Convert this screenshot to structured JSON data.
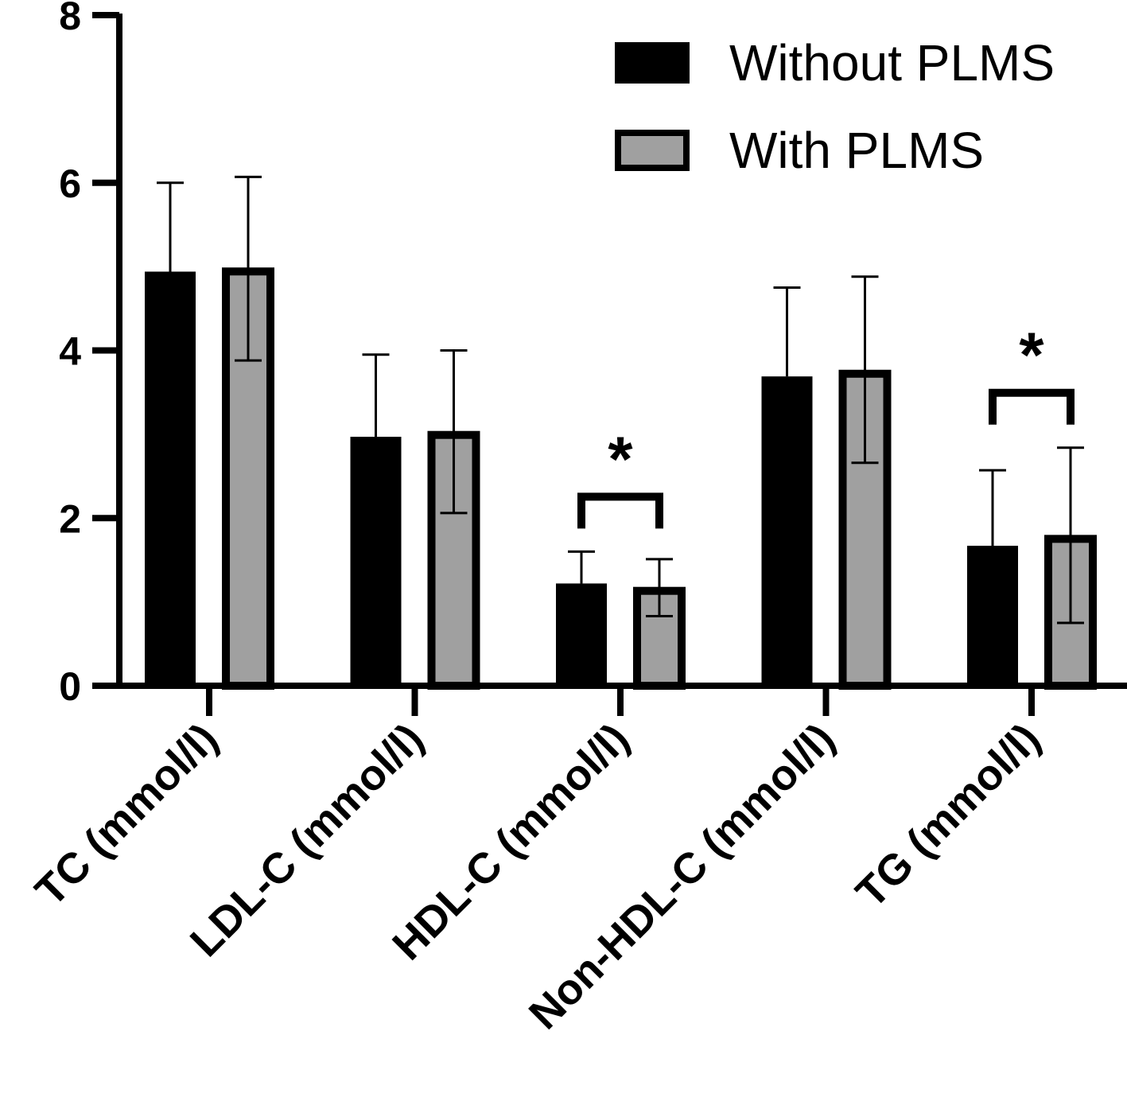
{
  "chart_data": {
    "type": "bar",
    "categories": [
      "TC (mmol/l)",
      "LDL-C (mmol/l)",
      "HDL-C (mmol/l)",
      "Non-HDL-C (mmol/l)",
      "TG (mmol/l)"
    ],
    "series": [
      {
        "name": "Without PLMS",
        "color": "#000000",
        "values": [
          4.94,
          2.97,
          1.22,
          3.69,
          1.67
        ],
        "error_upper": [
          6.0,
          3.95,
          1.6,
          4.75,
          2.57
        ],
        "error_style": "upper"
      },
      {
        "name": "With PLMS",
        "color": "#a0a0a0",
        "edge_color": "#000000",
        "values": [
          4.98,
          3.03,
          1.17,
          3.76,
          1.79
        ],
        "error_upper": [
          6.07,
          4.0,
          1.51,
          4.88,
          2.84
        ],
        "error_lower": [
          3.88,
          2.06,
          0.83,
          2.66,
          0.75
        ],
        "error_style": "both"
      }
    ],
    "ylim": [
      0,
      8
    ],
    "yticks": [
      "0",
      "2",
      "4",
      "6",
      "8"
    ],
    "xlabel": "",
    "ylabel": "",
    "grid": false,
    "legend": "top-right",
    "significance": [
      {
        "category": "HDL-C (mmol/l)",
        "label": "*"
      },
      {
        "category": "TG (mmol/l)",
        "label": "*"
      }
    ]
  }
}
